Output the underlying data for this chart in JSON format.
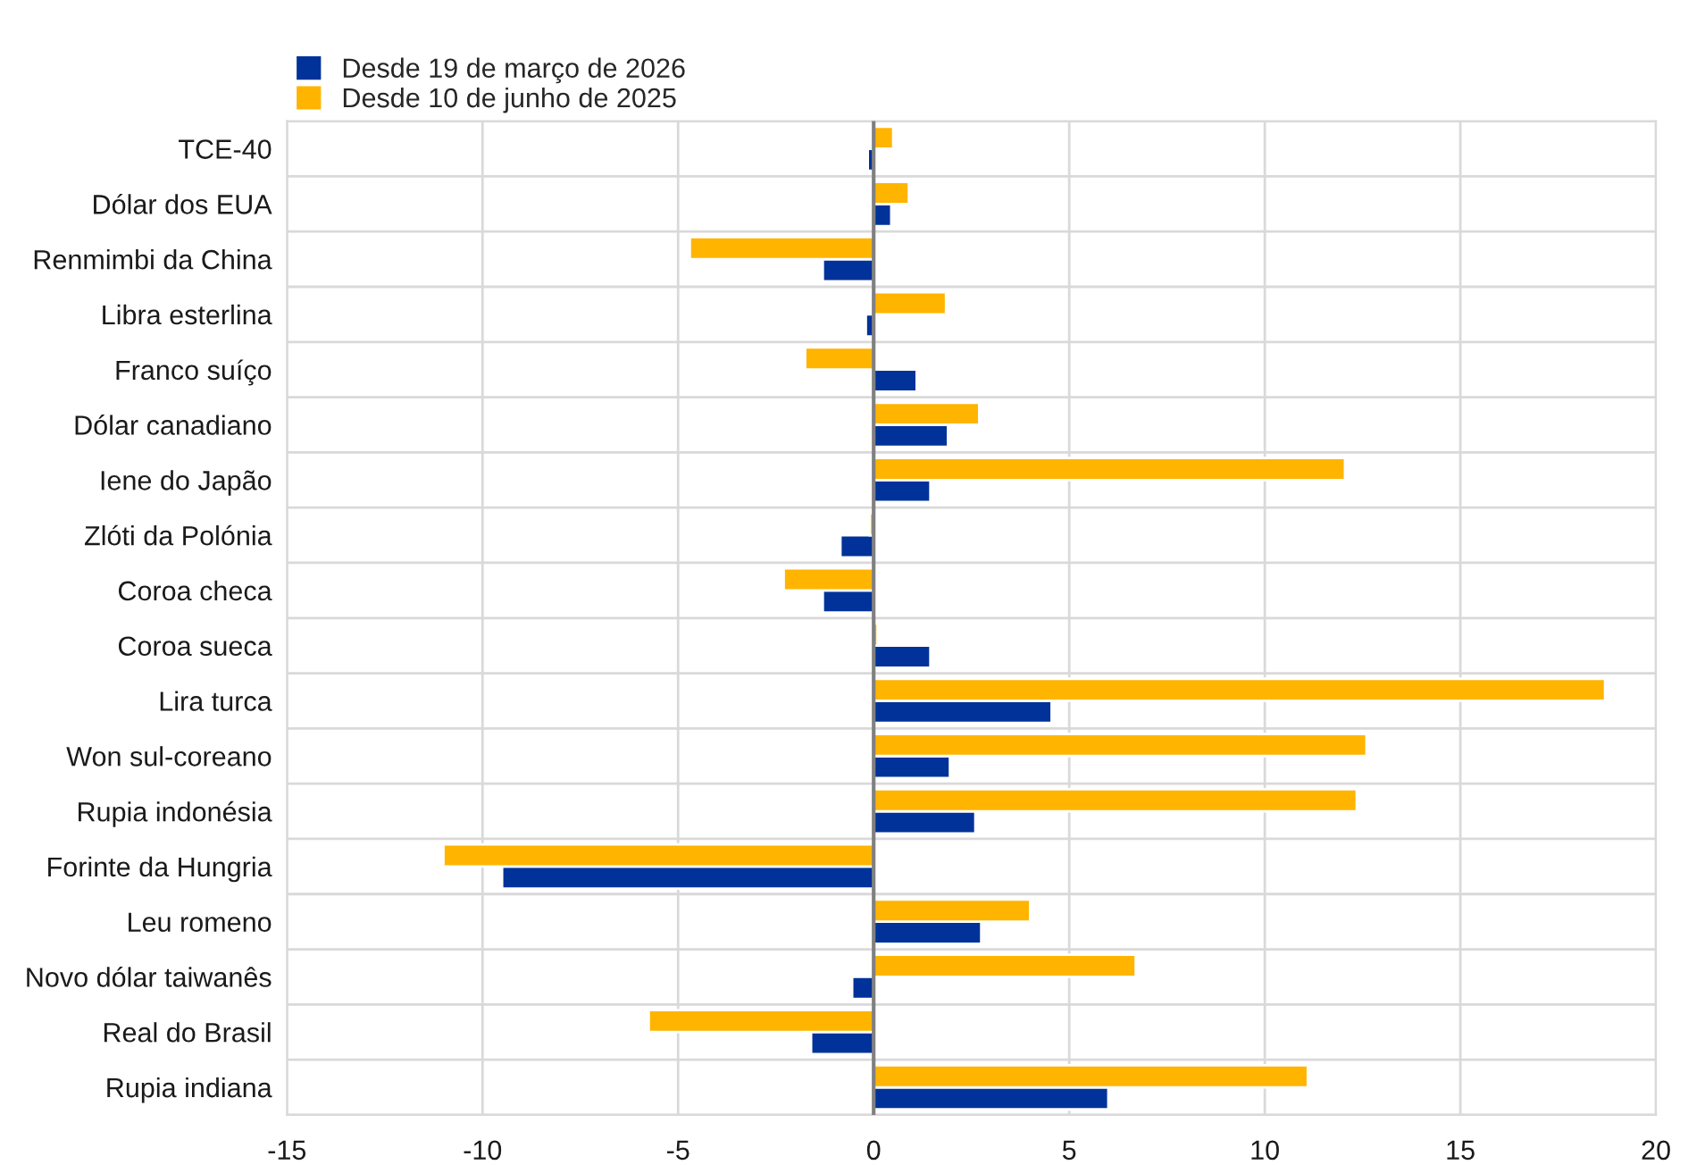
{
  "chart_data": {
    "type": "bar",
    "orientation": "horizontal",
    "categories": [
      "TCE-40",
      "Dólar dos EUA",
      "Renmimbi da China",
      "Libra esterlina",
      "Franco suíço",
      "Dólar canadiano",
      "Iene do Japão",
      "Zlóti da Polónia",
      "Coroa checa",
      "Coroa sueca",
      "Lira turca",
      "Won sul-coreano",
      "Rupia indonésia",
      "Forinte da Hungria",
      "Leu romeno",
      "Novo dólar taiwanês",
      "Real do Brasil",
      "Rupia indiana"
    ],
    "series": [
      {
        "name": "Desde 19 de março de 2026",
        "color": "#003299",
        "values": [
          -0.15,
          0.45,
          -1.3,
          -0.2,
          1.1,
          1.9,
          1.45,
          -0.85,
          -1.3,
          1.45,
          4.55,
          1.95,
          2.6,
          -9.5,
          2.75,
          -0.55,
          -1.6,
          6.0
        ]
      },
      {
        "name": "Desde 10 de junho de 2025",
        "color": "#ffb400",
        "values": [
          0.5,
          0.9,
          -4.7,
          1.85,
          -1.75,
          2.7,
          12.05,
          -0.1,
          -2.3,
          0.1,
          18.7,
          12.6,
          12.35,
          -11.0,
          4.0,
          6.7,
          -5.75,
          11.1
        ]
      }
    ],
    "xlim": [
      -15,
      20
    ],
    "xticks": [
      -15,
      -10,
      -5,
      0,
      5,
      10,
      15,
      20
    ],
    "grid": true,
    "legend": "top left"
  }
}
